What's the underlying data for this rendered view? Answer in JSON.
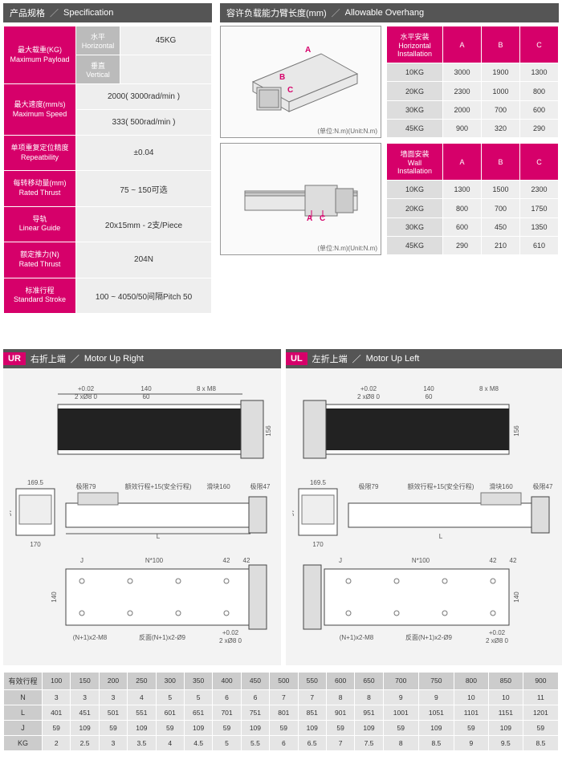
{
  "headers": {
    "spec_cn": "产品规格",
    "spec_en": "Specification",
    "over_cn": "容许负载能力臂长度(mm)",
    "over_en": "Allowable Overhang",
    "slash": "／"
  },
  "spec": {
    "rows": [
      {
        "lbl_cn": "最大载重(KG)",
        "lbl_en": "Maximum Payload",
        "subs": [
          {
            "sub_cn": "水平",
            "sub_en": "Horizontal",
            "val": "45KG"
          },
          {
            "sub_cn": "垂直",
            "sub_en": "Vertical",
            "val": ""
          }
        ]
      },
      {
        "lbl_cn": "最大速度(mm/s)",
        "lbl_en": "Maximum Speed",
        "vals": [
          "2000( 3000rad/min )",
          "333( 500rad/min )"
        ]
      },
      {
        "lbl_cn": "单项重复定位精度",
        "lbl_en": "Repeatbility",
        "vals": [
          "±0.04"
        ]
      },
      {
        "lbl_cn": "每转移动量(mm)",
        "lbl_en": "Rated Thrust",
        "vals": [
          "75 ~ 150可选"
        ]
      },
      {
        "lbl_cn": "导轨",
        "lbl_en": "Linear Guide",
        "vals": [
          "20x15mm - 2支/Piece"
        ]
      },
      {
        "lbl_cn": "额定推力(N)",
        "lbl_en": "Rated Thrust",
        "vals": [
          "204N"
        ]
      },
      {
        "lbl_cn": "标准行程",
        "lbl_en": "Standard Stroke",
        "vals": [
          "100 ~ 4050/50间隔Pitch 50"
        ]
      }
    ]
  },
  "overhang": {
    "unit": "(单位:N.m)(Unit:N.m)",
    "markers": {
      "a": "A",
      "b": "B",
      "c": "C"
    },
    "tables": [
      {
        "title_cn": "水平安装",
        "title_en": "Horizontal Installation",
        "cols": [
          "A",
          "B",
          "C"
        ],
        "rows": [
          {
            "h": "10KG",
            "v": [
              "3000",
              "1900",
              "1300"
            ]
          },
          {
            "h": "20KG",
            "v": [
              "2300",
              "1000",
              "800"
            ]
          },
          {
            "h": "30KG",
            "v": [
              "2000",
              "700",
              "600"
            ]
          },
          {
            "h": "45KG",
            "v": [
              "900",
              "320",
              "290"
            ]
          }
        ]
      },
      {
        "title_cn": "墙面安装",
        "title_en": "Wall Installation",
        "cols": [
          "A",
          "B",
          "C"
        ],
        "rows": [
          {
            "h": "10KG",
            "v": [
              "1300",
              "1500",
              "2300"
            ]
          },
          {
            "h": "20KG",
            "v": [
              "800",
              "700",
              "1750"
            ]
          },
          {
            "h": "30KG",
            "v": [
              "600",
              "450",
              "1350"
            ]
          },
          {
            "h": "45KG",
            "v": [
              "290",
              "210",
              "610"
            ]
          }
        ]
      }
    ]
  },
  "motor": {
    "ur": {
      "tag": "UR",
      "cn": "右折上端",
      "en": "Motor Up Right"
    },
    "ul": {
      "tag": "UL",
      "cn": "左折上端",
      "en": "Motor Up Left"
    },
    "dims": {
      "top": {
        "a": "+0.02",
        "b": "2 xØ8  0",
        "c": "140",
        "d": "60",
        "e": "8 x  M8",
        "h": "156"
      },
      "side": {
        "a": "169.5",
        "b": "170",
        "c": "97",
        "d": "极限79",
        "e": "额效行程+15(安全行程)",
        "f": "滑块160",
        "g": "极限47",
        "l": "L"
      },
      "bottom": {
        "j": "J",
        "n": "N*100",
        "a": "42",
        "b": "42",
        "h": "140",
        "m8": "(N+1)x2-M8",
        "o9": "反面(N+1)x2-Ø9",
        "p": "+0.02",
        "q": "2 xØ8  0"
      }
    }
  },
  "dimtable": {
    "header": "有效行程",
    "cols": [
      "100",
      "150",
      "200",
      "250",
      "300",
      "350",
      "400",
      "450",
      "500",
      "550",
      "600",
      "650",
      "700",
      "750",
      "800",
      "850",
      "900"
    ],
    "rows": [
      {
        "h": "N",
        "v": [
          "3",
          "3",
          "3",
          "4",
          "5",
          "5",
          "6",
          "6",
          "7",
          "7",
          "8",
          "8",
          "9",
          "9",
          "10",
          "10",
          "11"
        ]
      },
      {
        "h": "L",
        "v": [
          "401",
          "451",
          "501",
          "551",
          "601",
          "651",
          "701",
          "751",
          "801",
          "851",
          "901",
          "951",
          "1001",
          "1051",
          "1101",
          "1151",
          "1201"
        ]
      },
      {
        "h": "J",
        "v": [
          "59",
          "109",
          "59",
          "109",
          "59",
          "109",
          "59",
          "109",
          "59",
          "109",
          "59",
          "109",
          "59",
          "109",
          "59",
          "109",
          "59"
        ]
      },
      {
        "h": "KG",
        "v": [
          "2",
          "2.5",
          "3",
          "3.5",
          "4",
          "4.5",
          "5",
          "5.5",
          "6",
          "6.5",
          "7",
          "7.5",
          "8",
          "8.5",
          "9",
          "9.5",
          "8.5"
        ]
      }
    ]
  },
  "colors": {
    "accent": "#d6006a",
    "header": "#555555",
    "cell": "#eeeeee",
    "cell_alt": "#dddddd"
  }
}
